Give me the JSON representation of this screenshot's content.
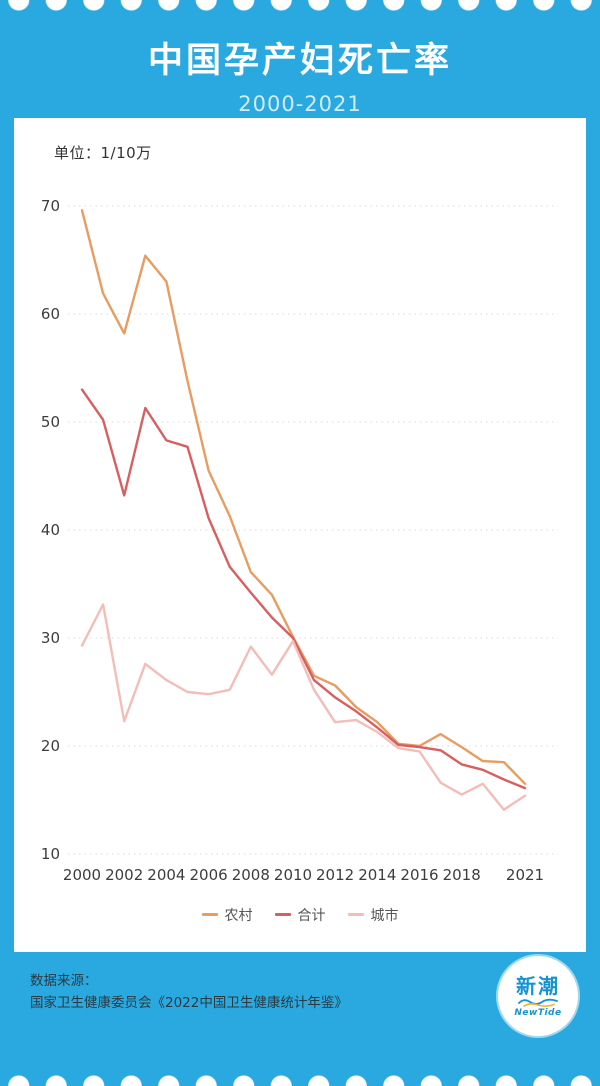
{
  "header": {
    "title": "中国孕产妇死亡率",
    "subtitle": "2000-2021"
  },
  "chart": {
    "unit_label": "单位：1/10万"
  },
  "chart_data": {
    "type": "line",
    "title": "中国孕产妇死亡率",
    "subtitle": "2000-2021",
    "unit": "单位：1/10万",
    "xlabel": "",
    "ylabel": "",
    "ylim": [
      10,
      70
    ],
    "yticks": [
      10,
      20,
      30,
      40,
      50,
      60,
      70
    ],
    "xticks": [
      2000,
      2002,
      2004,
      2006,
      2008,
      2010,
      2012,
      2014,
      2016,
      2018,
      2021
    ],
    "grid": "dotted-horizontal",
    "legend_position": "bottom",
    "x": [
      2000,
      2001,
      2002,
      2003,
      2004,
      2005,
      2006,
      2007,
      2008,
      2009,
      2010,
      2011,
      2012,
      2013,
      2014,
      2015,
      2016,
      2017,
      2018,
      2019,
      2020,
      2021
    ],
    "series": [
      {
        "name": "农村",
        "color": "#E89C60",
        "values": [
          69.6,
          61.9,
          58.2,
          65.4,
          63.0,
          53.8,
          45.5,
          41.3,
          36.1,
          34.0,
          30.1,
          26.5,
          25.6,
          23.6,
          22.2,
          20.2,
          20.0,
          21.1,
          19.9,
          18.6,
          18.5,
          16.5
        ]
      },
      {
        "name": "合计",
        "color": "#D75F5F",
        "values": [
          53.0,
          50.2,
          43.2,
          51.3,
          48.3,
          47.7,
          41.1,
          36.6,
          34.2,
          31.9,
          30.0,
          26.1,
          24.5,
          23.2,
          21.7,
          20.1,
          19.9,
          19.6,
          18.3,
          17.8,
          16.9,
          16.1
        ]
      },
      {
        "name": "城市",
        "color": "#F3BDB8",
        "values": [
          29.3,
          33.1,
          22.3,
          27.6,
          26.1,
          25.0,
          24.8,
          25.2,
          29.2,
          26.6,
          29.7,
          25.2,
          22.2,
          22.4,
          21.3,
          19.8,
          19.5,
          16.6,
          15.5,
          16.5,
          14.1,
          15.4
        ]
      }
    ]
  },
  "footer": {
    "source_line1": "数据来源：",
    "source_line2": "国家卫生健康委员会《2022中国卫生健康统计年鉴》",
    "logo_cn": "新潮",
    "logo_en": "NewTide"
  },
  "colors": {
    "background": "#2AA9E0",
    "rural": "#E89C60",
    "total": "#D75F5F",
    "urban": "#F3BDB8",
    "grid": "#d9d9d9"
  }
}
